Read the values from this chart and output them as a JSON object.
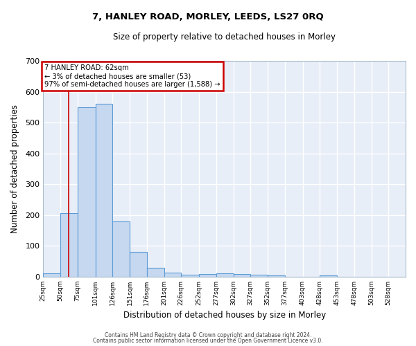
{
  "title1": "7, HANLEY ROAD, MORLEY, LEEDS, LS27 0RQ",
  "title2": "Size of property relative to detached houses in Morley",
  "xlabel": "Distribution of detached houses by size in Morley",
  "ylabel": "Number of detached properties",
  "footnote1": "Contains HM Land Registry data © Crown copyright and database right 2024.",
  "footnote2": "Contains public sector information licensed under the Open Government Licence v3.0.",
  "bin_labels": [
    "25sqm",
    "50sqm",
    "75sqm",
    "101sqm",
    "126sqm",
    "151sqm",
    "176sqm",
    "201sqm",
    "226sqm",
    "252sqm",
    "277sqm",
    "302sqm",
    "327sqm",
    "352sqm",
    "377sqm",
    "403sqm",
    "428sqm",
    "453sqm",
    "478sqm",
    "503sqm",
    "528sqm"
  ],
  "bin_edges": [
    25,
    50,
    75,
    101,
    126,
    151,
    176,
    201,
    226,
    252,
    277,
    302,
    327,
    352,
    377,
    403,
    428,
    453,
    478,
    503,
    528,
    553
  ],
  "bar_heights": [
    12,
    207,
    550,
    560,
    180,
    80,
    30,
    14,
    6,
    8,
    10,
    8,
    7,
    5,
    0,
    0,
    5,
    0,
    0,
    0,
    0
  ],
  "bar_color": "#c5d8f0",
  "bar_edge_color": "#5b9bd5",
  "bg_color": "#e8eef8",
  "grid_color": "#ffffff",
  "red_line_x": 62,
  "annotation_text": "7 HANLEY ROAD: 62sqm\n← 3% of detached houses are smaller (53)\n97% of semi-detached houses are larger (1,588) →",
  "annotation_box_color": "#ffffff",
  "annotation_box_edge": "#cc0000",
  "ylim": [
    0,
    700
  ],
  "yticks": [
    0,
    100,
    200,
    300,
    400,
    500,
    600,
    700
  ],
  "fig_width": 6.0,
  "fig_height": 5.0,
  "dpi": 100
}
